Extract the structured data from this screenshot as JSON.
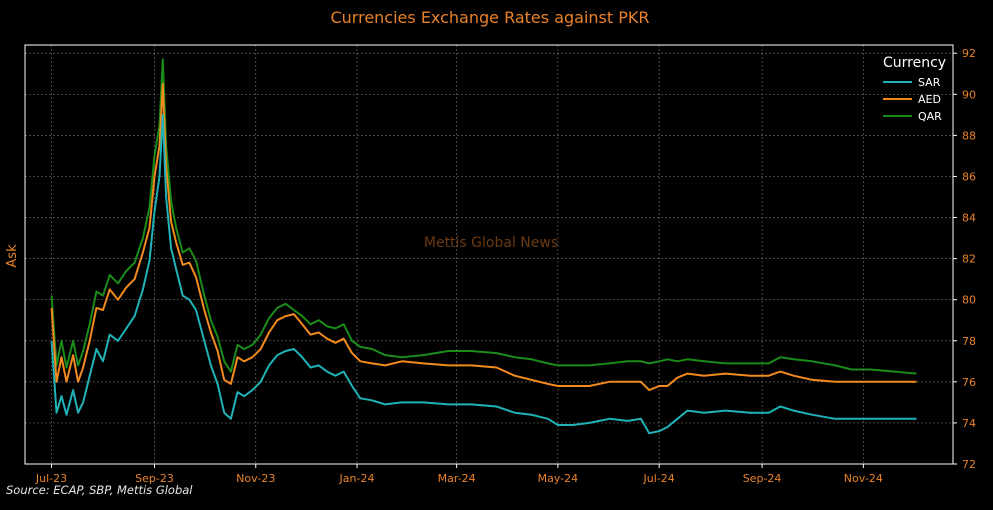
{
  "chart_data": {
    "type": "line",
    "title": "Currencies Exchange Rates against PKR",
    "ylabel": "Ask",
    "xlabel": "",
    "watermark": "Mettis Global News",
    "source": "Source: ECAP, SBP, Mettis Global",
    "legend": {
      "title": "Currency",
      "position": "top-right"
    },
    "x_ticks": [
      "Jul-23",
      "Sep-23",
      "Nov-23",
      "Jan-24",
      "Mar-24",
      "May-24",
      "Jul-24",
      "Sep-24",
      "Nov-24"
    ],
    "y_ticks": [
      72,
      74,
      76,
      78,
      80,
      82,
      84,
      86,
      88,
      90,
      92
    ],
    "ylim": [
      72,
      92.4
    ],
    "xlim": [
      "2023-06-15",
      "2024-12-25"
    ],
    "grid": true,
    "y_axis_side": "right",
    "colors": {
      "background": "#000000",
      "title": "#e8822a",
      "axis_text": "#e8822a",
      "grid": "#666666",
      "watermark": "#6b3a12"
    },
    "series": [
      {
        "name": "SAR",
        "color": "#1fb3b8",
        "points": [
          [
            "2023-07-01",
            78.0
          ],
          [
            "2023-07-04",
            74.5
          ],
          [
            "2023-07-07",
            75.3
          ],
          [
            "2023-07-10",
            74.4
          ],
          [
            "2023-07-14",
            75.6
          ],
          [
            "2023-07-17",
            74.5
          ],
          [
            "2023-07-20",
            75.0
          ],
          [
            "2023-07-24",
            76.3
          ],
          [
            "2023-07-28",
            77.6
          ],
          [
            "2023-08-01",
            77.0
          ],
          [
            "2023-08-05",
            78.3
          ],
          [
            "2023-08-10",
            78.0
          ],
          [
            "2023-08-15",
            78.6
          ],
          [
            "2023-08-20",
            79.2
          ],
          [
            "2023-08-25",
            80.5
          ],
          [
            "2023-08-29",
            81.9
          ],
          [
            "2023-09-01",
            84.3
          ],
          [
            "2023-09-04",
            86.0
          ],
          [
            "2023-09-06",
            89.0
          ],
          [
            "2023-09-08",
            85.0
          ],
          [
            "2023-09-11",
            82.5
          ],
          [
            "2023-09-14",
            81.5
          ],
          [
            "2023-09-18",
            80.2
          ],
          [
            "2023-09-22",
            80.0
          ],
          [
            "2023-09-26",
            79.5
          ],
          [
            "2023-10-01",
            78.0
          ],
          [
            "2023-10-05",
            76.8
          ],
          [
            "2023-10-09",
            75.9
          ],
          [
            "2023-10-13",
            74.5
          ],
          [
            "2023-10-17",
            74.2
          ],
          [
            "2023-10-21",
            75.5
          ],
          [
            "2023-10-25",
            75.3
          ],
          [
            "2023-10-30",
            75.6
          ],
          [
            "2023-11-04",
            76.0
          ],
          [
            "2023-11-09",
            76.8
          ],
          [
            "2023-11-14",
            77.3
          ],
          [
            "2023-11-19",
            77.5
          ],
          [
            "2023-11-24",
            77.6
          ],
          [
            "2023-11-29",
            77.2
          ],
          [
            "2023-12-04",
            76.7
          ],
          [
            "2023-12-09",
            76.8
          ],
          [
            "2023-12-14",
            76.5
          ],
          [
            "2023-12-19",
            76.3
          ],
          [
            "2023-12-24",
            76.5
          ],
          [
            "2023-12-29",
            75.8
          ],
          [
            "2024-01-03",
            75.2
          ],
          [
            "2024-01-10",
            75.1
          ],
          [
            "2024-01-18",
            74.9
          ],
          [
            "2024-01-28",
            75.0
          ],
          [
            "2024-02-10",
            75.0
          ],
          [
            "2024-02-25",
            74.9
          ],
          [
            "2024-03-10",
            74.9
          ],
          [
            "2024-03-25",
            74.8
          ],
          [
            "2024-04-05",
            74.5
          ],
          [
            "2024-04-15",
            74.4
          ],
          [
            "2024-04-25",
            74.2
          ],
          [
            "2024-05-01",
            73.9
          ],
          [
            "2024-05-10",
            73.9
          ],
          [
            "2024-05-20",
            74.0
          ],
          [
            "2024-06-01",
            74.2
          ],
          [
            "2024-06-12",
            74.1
          ],
          [
            "2024-06-20",
            74.2
          ],
          [
            "2024-06-25",
            73.5
          ],
          [
            "2024-07-01",
            73.6
          ],
          [
            "2024-07-06",
            73.8
          ],
          [
            "2024-07-12",
            74.2
          ],
          [
            "2024-07-18",
            74.6
          ],
          [
            "2024-07-28",
            74.5
          ],
          [
            "2024-08-10",
            74.6
          ],
          [
            "2024-08-25",
            74.5
          ],
          [
            "2024-09-05",
            74.5
          ],
          [
            "2024-09-12",
            74.8
          ],
          [
            "2024-09-20",
            74.6
          ],
          [
            "2024-10-01",
            74.4
          ],
          [
            "2024-10-15",
            74.2
          ],
          [
            "2024-10-25",
            74.2
          ],
          [
            "2024-11-05",
            74.2
          ],
          [
            "2024-11-20",
            74.2
          ],
          [
            "2024-12-03",
            74.2
          ]
        ]
      },
      {
        "name": "AED",
        "color": "#f28a1e",
        "points": [
          [
            "2023-07-01",
            79.6
          ],
          [
            "2023-07-04",
            76.0
          ],
          [
            "2023-07-07",
            77.2
          ],
          [
            "2023-07-10",
            76.0
          ],
          [
            "2023-07-14",
            77.3
          ],
          [
            "2023-07-17",
            76.0
          ],
          [
            "2023-07-20",
            76.7
          ],
          [
            "2023-07-24",
            78.0
          ],
          [
            "2023-07-28",
            79.6
          ],
          [
            "2023-08-01",
            79.5
          ],
          [
            "2023-08-05",
            80.5
          ],
          [
            "2023-08-10",
            80.0
          ],
          [
            "2023-08-15",
            80.6
          ],
          [
            "2023-08-20",
            81.0
          ],
          [
            "2023-08-25",
            82.3
          ],
          [
            "2023-08-29",
            83.5
          ],
          [
            "2023-09-01",
            86.0
          ],
          [
            "2023-09-04",
            87.5
          ],
          [
            "2023-09-06",
            90.5
          ],
          [
            "2023-09-08",
            86.5
          ],
          [
            "2023-09-11",
            83.8
          ],
          [
            "2023-09-14",
            82.8
          ],
          [
            "2023-09-18",
            81.7
          ],
          [
            "2023-09-22",
            81.8
          ],
          [
            "2023-09-26",
            81.1
          ],
          [
            "2023-10-01",
            79.5
          ],
          [
            "2023-10-05",
            78.4
          ],
          [
            "2023-10-09",
            77.5
          ],
          [
            "2023-10-13",
            76.1
          ],
          [
            "2023-10-17",
            75.9
          ],
          [
            "2023-10-21",
            77.2
          ],
          [
            "2023-10-25",
            77.0
          ],
          [
            "2023-10-30",
            77.2
          ],
          [
            "2023-11-04",
            77.6
          ],
          [
            "2023-11-09",
            78.4
          ],
          [
            "2023-11-14",
            79.0
          ],
          [
            "2023-11-19",
            79.2
          ],
          [
            "2023-11-24",
            79.3
          ],
          [
            "2023-11-29",
            78.8
          ],
          [
            "2023-12-04",
            78.3
          ],
          [
            "2023-12-09",
            78.4
          ],
          [
            "2023-12-14",
            78.1
          ],
          [
            "2023-12-19",
            77.9
          ],
          [
            "2023-12-24",
            78.1
          ],
          [
            "2023-12-29",
            77.4
          ],
          [
            "2024-01-03",
            77.0
          ],
          [
            "2024-01-10",
            76.9
          ],
          [
            "2024-01-18",
            76.8
          ],
          [
            "2024-01-28",
            77.0
          ],
          [
            "2024-02-10",
            76.9
          ],
          [
            "2024-02-25",
            76.8
          ],
          [
            "2024-03-10",
            76.8
          ],
          [
            "2024-03-25",
            76.7
          ],
          [
            "2024-04-05",
            76.3
          ],
          [
            "2024-04-15",
            76.1
          ],
          [
            "2024-04-25",
            75.9
          ],
          [
            "2024-05-01",
            75.8
          ],
          [
            "2024-05-10",
            75.8
          ],
          [
            "2024-05-20",
            75.8
          ],
          [
            "2024-06-01",
            76.0
          ],
          [
            "2024-06-12",
            76.0
          ],
          [
            "2024-06-20",
            76.0
          ],
          [
            "2024-06-25",
            75.6
          ],
          [
            "2024-07-01",
            75.8
          ],
          [
            "2024-07-06",
            75.8
          ],
          [
            "2024-07-12",
            76.2
          ],
          [
            "2024-07-18",
            76.4
          ],
          [
            "2024-07-28",
            76.3
          ],
          [
            "2024-08-10",
            76.4
          ],
          [
            "2024-08-25",
            76.3
          ],
          [
            "2024-09-05",
            76.3
          ],
          [
            "2024-09-12",
            76.5
          ],
          [
            "2024-09-20",
            76.3
          ],
          [
            "2024-10-01",
            76.1
          ],
          [
            "2024-10-15",
            76.0
          ],
          [
            "2024-10-25",
            76.0
          ],
          [
            "2024-11-05",
            76.0
          ],
          [
            "2024-11-20",
            76.0
          ],
          [
            "2024-12-03",
            76.0
          ]
        ]
      },
      {
        "name": "QAR",
        "color": "#1a8c1a",
        "points": [
          [
            "2023-07-01",
            80.2
          ],
          [
            "2023-07-04",
            76.8
          ],
          [
            "2023-07-07",
            78.0
          ],
          [
            "2023-07-10",
            76.7
          ],
          [
            "2023-07-14",
            78.0
          ],
          [
            "2023-07-17",
            76.8
          ],
          [
            "2023-07-20",
            77.5
          ],
          [
            "2023-07-24",
            78.8
          ],
          [
            "2023-07-28",
            80.4
          ],
          [
            "2023-08-01",
            80.2
          ],
          [
            "2023-08-05",
            81.2
          ],
          [
            "2023-08-10",
            80.8
          ],
          [
            "2023-08-15",
            81.4
          ],
          [
            "2023-08-20",
            81.8
          ],
          [
            "2023-08-25",
            83.0
          ],
          [
            "2023-08-29",
            84.5
          ],
          [
            "2023-09-01",
            87.0
          ],
          [
            "2023-09-04",
            88.5
          ],
          [
            "2023-09-06",
            91.7
          ],
          [
            "2023-09-08",
            87.5
          ],
          [
            "2023-09-11",
            84.8
          ],
          [
            "2023-09-14",
            83.5
          ],
          [
            "2023-09-18",
            82.3
          ],
          [
            "2023-09-22",
            82.5
          ],
          [
            "2023-09-26",
            81.9
          ],
          [
            "2023-10-01",
            80.2
          ],
          [
            "2023-10-05",
            79.0
          ],
          [
            "2023-10-09",
            78.2
          ],
          [
            "2023-10-13",
            77.0
          ],
          [
            "2023-10-17",
            76.5
          ],
          [
            "2023-10-21",
            77.8
          ],
          [
            "2023-10-25",
            77.6
          ],
          [
            "2023-10-30",
            77.8
          ],
          [
            "2023-11-04",
            78.3
          ],
          [
            "2023-11-09",
            79.1
          ],
          [
            "2023-11-14",
            79.6
          ],
          [
            "2023-11-19",
            79.8
          ],
          [
            "2023-11-24",
            79.5
          ],
          [
            "2023-11-29",
            79.2
          ],
          [
            "2023-12-04",
            78.8
          ],
          [
            "2023-12-09",
            79.0
          ],
          [
            "2023-12-14",
            78.7
          ],
          [
            "2023-12-19",
            78.6
          ],
          [
            "2023-12-24",
            78.8
          ],
          [
            "2023-12-29",
            78.0
          ],
          [
            "2024-01-03",
            77.7
          ],
          [
            "2024-01-10",
            77.6
          ],
          [
            "2024-01-18",
            77.3
          ],
          [
            "2024-01-28",
            77.2
          ],
          [
            "2024-02-10",
            77.3
          ],
          [
            "2024-02-25",
            77.5
          ],
          [
            "2024-03-10",
            77.5
          ],
          [
            "2024-03-25",
            77.4
          ],
          [
            "2024-04-05",
            77.2
          ],
          [
            "2024-04-15",
            77.1
          ],
          [
            "2024-04-25",
            76.9
          ],
          [
            "2024-05-01",
            76.8
          ],
          [
            "2024-05-10",
            76.8
          ],
          [
            "2024-05-20",
            76.8
          ],
          [
            "2024-06-01",
            76.9
          ],
          [
            "2024-06-12",
            77.0
          ],
          [
            "2024-06-20",
            77.0
          ],
          [
            "2024-06-25",
            76.9
          ],
          [
            "2024-07-01",
            77.0
          ],
          [
            "2024-07-06",
            77.1
          ],
          [
            "2024-07-12",
            77.0
          ],
          [
            "2024-07-18",
            77.1
          ],
          [
            "2024-07-28",
            77.0
          ],
          [
            "2024-08-10",
            76.9
          ],
          [
            "2024-08-25",
            76.9
          ],
          [
            "2024-09-05",
            76.9
          ],
          [
            "2024-09-12",
            77.2
          ],
          [
            "2024-09-20",
            77.1
          ],
          [
            "2024-10-01",
            77.0
          ],
          [
            "2024-10-15",
            76.8
          ],
          [
            "2024-10-25",
            76.6
          ],
          [
            "2024-11-05",
            76.6
          ],
          [
            "2024-11-20",
            76.5
          ],
          [
            "2024-12-03",
            76.4
          ]
        ]
      }
    ]
  }
}
